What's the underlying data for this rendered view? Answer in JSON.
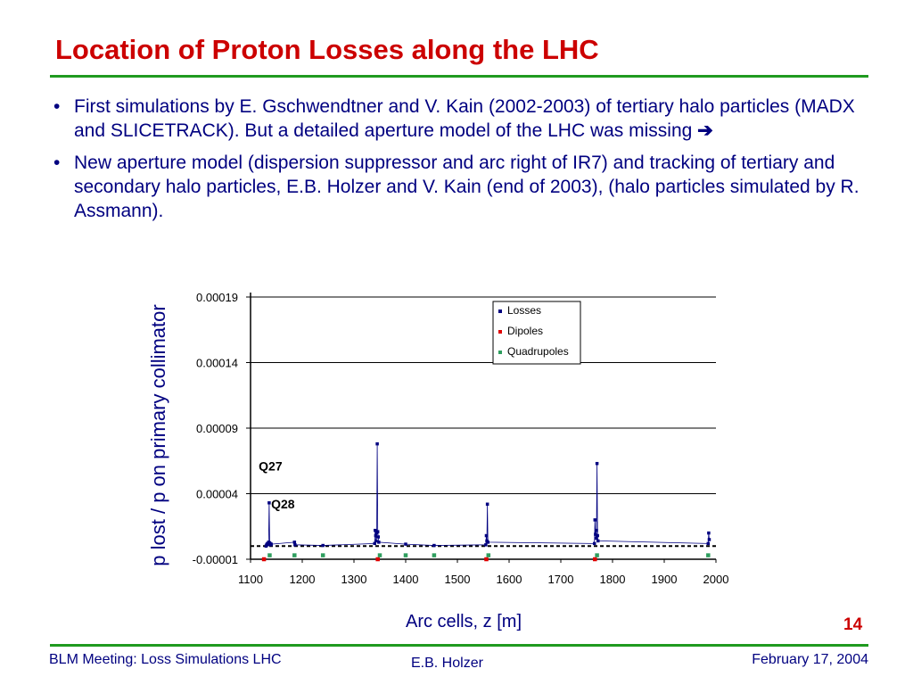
{
  "slide": {
    "title": "Location of Proton Losses along the LHC",
    "bullets": [
      {
        "text": "First simulations by E. Gschwendtner and V. Kain (2002-2003) of tertiary halo particles (MADX and SLICETRACK). But a detailed aperture model of the LHC was missing",
        "suffix": "➔"
      },
      {
        "text": "New aperture model (dispersion suppressor and arc right of IR7) and tracking of tertiary and secondary halo particles, E.B. Holzer and V. Kain (end of 2003), (halo particles simulated by R. Assmann).",
        "suffix": ""
      }
    ],
    "bullet_marker": "•",
    "slide_number": "14",
    "colors": {
      "title": "#cc0000",
      "body": "#000080",
      "rule": "#1f9a1f"
    }
  },
  "footer": {
    "left": "BLM Meeting: Loss Simulations LHC",
    "center": "E.B. Holzer",
    "right": "February 17, 2004"
  },
  "chart_data": {
    "type": "scatter",
    "title": "",
    "xlabel": "Arc cells, z [m]",
    "ylabel": "p lost / p on primary collimator",
    "xlim": [
      1100,
      2000
    ],
    "ylim": [
      -1e-05,
      0.00019
    ],
    "x_ticks": [
      "1100",
      "1200",
      "1300",
      "1400",
      "1500",
      "1600",
      "1700",
      "1800",
      "1900",
      "2000"
    ],
    "y_ticks": [
      "-0.00001",
      "0.00004",
      "0.00009",
      "0.00014",
      "0.00019"
    ],
    "grid": true,
    "legend_position": "top-right",
    "annotations": [
      {
        "text": "Q27",
        "x": 1102,
        "y": 5.5e-05
      },
      {
        "text": "Q28",
        "x": 1126,
        "y": 2.6e-05
      }
    ],
    "series": [
      {
        "name": "Losses",
        "color": "#000080",
        "marker": "square",
        "points": [
          [
            1130,
            0.0
          ],
          [
            1131,
            8e-07
          ],
          [
            1132,
            1.5e-06
          ],
          [
            1133,
            2e-06
          ],
          [
            1134,
            1.2e-06
          ],
          [
            1135,
            3e-06
          ],
          [
            1136,
            3.3e-05
          ],
          [
            1137,
            2.5e-06
          ],
          [
            1138,
            1.8e-06
          ],
          [
            1139,
            1e-06
          ],
          [
            1140,
            1.5e-06
          ],
          [
            1185,
            3e-06
          ],
          [
            1186,
            1e-06
          ],
          [
            1240,
            5e-07
          ],
          [
            1340,
            2e-06
          ],
          [
            1341,
            1.2e-05
          ],
          [
            1342,
            8e-06
          ],
          [
            1343,
            4e-06
          ],
          [
            1344,
            1e-05
          ],
          [
            1345,
            7.8e-05
          ],
          [
            1346,
            1.1e-05
          ],
          [
            1347,
            7e-06
          ],
          [
            1348,
            3e-06
          ],
          [
            1400,
            1.5e-06
          ],
          [
            1455,
            5e-07
          ],
          [
            1555,
            1e-06
          ],
          [
            1556,
            8e-06
          ],
          [
            1557,
            4e-06
          ],
          [
            1558,
            3.2e-05
          ],
          [
            1559,
            3e-06
          ],
          [
            1765,
            2e-06
          ],
          [
            1766,
            2e-05
          ],
          [
            1767,
            9e-06
          ],
          [
            1768,
            6e-06
          ],
          [
            1769,
            1.2e-05
          ],
          [
            1770,
            6.3e-05
          ],
          [
            1771,
            8e-06
          ],
          [
            1772,
            4e-06
          ],
          [
            1985,
            2e-06
          ],
          [
            1986,
            1e-05
          ],
          [
            1987,
            5e-06
          ]
        ]
      },
      {
        "name": "Dipoles",
        "color": "#e00000",
        "marker": "square",
        "points": [
          [
            1126,
            -1e-05
          ],
          [
            1346,
            -1e-05
          ],
          [
            1556,
            -1e-05
          ],
          [
            1766,
            -1e-05
          ]
        ]
      },
      {
        "name": "Quadrupoles",
        "color": "#2e9e5e",
        "marker": "square",
        "points": [
          [
            1137,
            -7e-06
          ],
          [
            1185,
            -7e-06
          ],
          [
            1240,
            -7e-06
          ],
          [
            1350,
            -7e-06
          ],
          [
            1400,
            -7e-06
          ],
          [
            1455,
            -7e-06
          ],
          [
            1560,
            -7e-06
          ],
          [
            1770,
            -7e-06
          ],
          [
            1985,
            -7e-06
          ]
        ]
      }
    ]
  }
}
